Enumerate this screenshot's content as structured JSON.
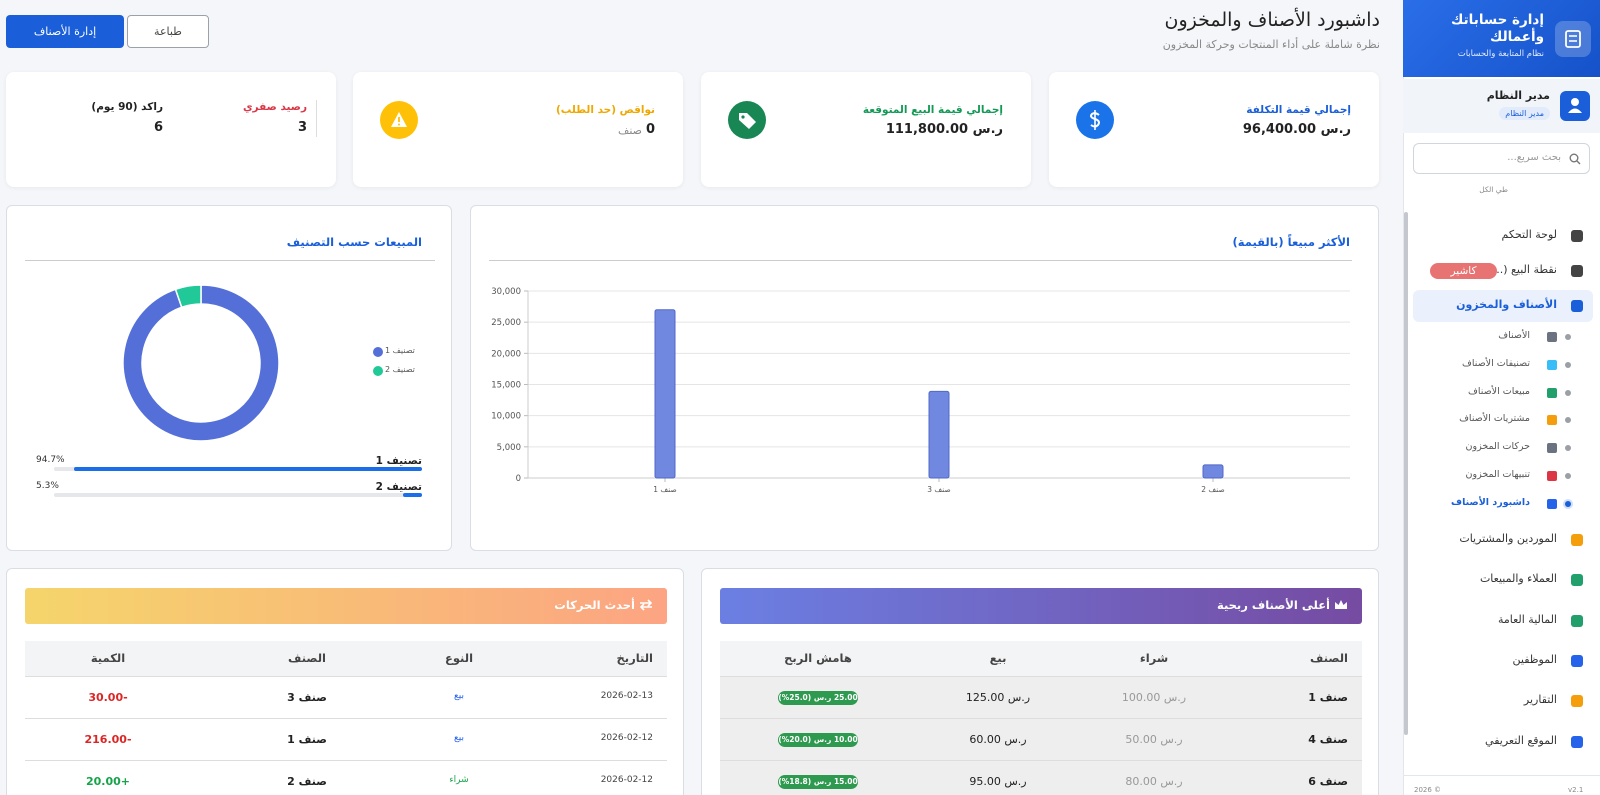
{
  "sidebar": {
    "brand_title": "إدارة حساباتك وأعمالك",
    "brand_subtitle": "نظام المتابعة والحسابات",
    "user_name": "مدير النظام",
    "user_role": "مدير النظام",
    "search_placeholder": "بحث سريع...",
    "collapse_all": "طي الكل",
    "menu": [
      {
        "label": "لوحة التحكم"
      },
      {
        "label": "نقطة البيع (...",
        "badge": "كاشير"
      },
      {
        "label": "الأصناف والمخزون",
        "submenu": [
          "الأصناف",
          "تصنيفات الأصناف",
          "مبيعات الأصناف",
          "مشتريات الأصناف",
          "حركات المخزون",
          "تنبيهات المخزون",
          "داشبورد الأصناف"
        ]
      },
      {
        "label": "الموردين والمشتريات"
      },
      {
        "label": "العملاء والمبيعات"
      },
      {
        "label": "المالية العامة"
      },
      {
        "label": "الموظفين"
      },
      {
        "label": "التقارير"
      },
      {
        "label": "الموقع التعريفي"
      }
    ],
    "footer": "© 2026",
    "version": "v2.1"
  },
  "header": {
    "title": "داشبورد الأصناف والمخزون",
    "subtitle": "نظرة شاملة على أداء المنتجات وحركة المخزون",
    "buttons": [
      "إدارة الأصناف",
      "طباعة"
    ]
  },
  "cards": [
    {
      "label": "إجمالي قيمة التكلفة",
      "value": "96,400.00 ر.س"
    },
    {
      "label": "إجمالي قيمة البيع المتوقعة",
      "value": "111,800.00 ر.س"
    },
    {
      "label": "نواقص (حد الطلب)",
      "value": "0",
      "unit": "صنف"
    },
    {
      "items": [
        {
          "label": "رصيد صفري",
          "value": "3"
        },
        {
          "label": "راكد (90 يوم)",
          "value": "6"
        }
      ]
    }
  ],
  "chart_data": [
    {
      "type": "bar",
      "title": "الأكثر مبيعاً (بالقيمة)",
      "categories": [
        "صنف 1",
        "صنف 3",
        "صنف 2"
      ],
      "values": [
        27000,
        13900,
        2100
      ],
      "color": "#7088e0",
      "ylim": [
        0,
        30000
      ],
      "yticks": [
        0,
        {
          "value": 5000,
          "label": "5,000"
        },
        {
          "value": 10000,
          "label": "10,000"
        },
        {
          "value": 15000,
          "label": "15,000"
        },
        {
          "value": 20000,
          "label": "20,000"
        },
        {
          "value": 25000,
          "label": "25,000"
        },
        {
          "value": 30000,
          "label": "30,000"
        }
      ],
      "grid": true
    },
    {
      "type": "pie",
      "title": "المبيعات حسب التصنيف",
      "categories": [
        "تصنيف 1",
        "تصنيف 2"
      ],
      "values": [
        94.7,
        5.3
      ],
      "value_labels": [
        "94.7%",
        "5.3%"
      ],
      "colors": [
        "#5470d8",
        "#20c997"
      ],
      "bar_color": "#1a6fe8"
    }
  ],
  "tables": [
    {
      "title": "أعلى الأصناف ربحية",
      "columns": [
        "الصنف",
        "شراء",
        "بيع",
        "هامش الربح"
      ],
      "rows": [
        [
          "صنف 1",
          "100.00 ر.س",
          "125.00 ر.س",
          "25.00 ر.س (25.0%)"
        ],
        [
          "صنف 4",
          "50.00 ر.س",
          "60.00 ر.س",
          "10.00 ر.س (20.0%)"
        ],
        [
          "صنف 6",
          "80.00 ر.س",
          "95.00 ر.س",
          "15.00 ر.س (18.8%)"
        ]
      ]
    },
    {
      "title": "أحدث الحركات",
      "columns": [
        "التاريخ",
        "النوع",
        "الصنف",
        "الكمية"
      ],
      "rows": [
        [
          "2026-02-13",
          "بيع",
          "صنف 3",
          "-30.00"
        ],
        [
          "2026-02-12",
          "بيع",
          "صنف 1",
          "-216.00"
        ],
        [
          "2026-02-12",
          "شراء",
          "صنف 2",
          "+20.00"
        ]
      ]
    }
  ]
}
